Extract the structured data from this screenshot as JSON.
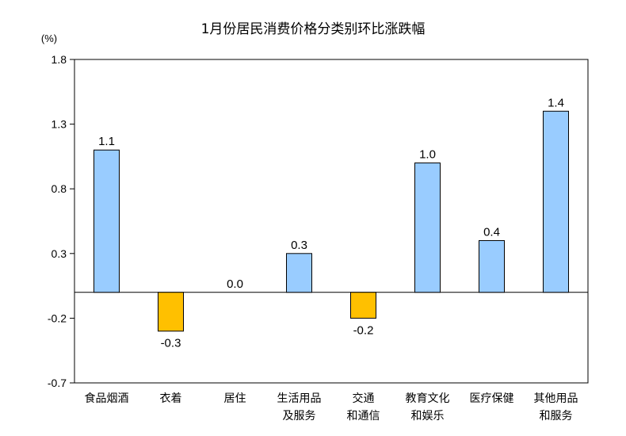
{
  "chart_data": {
    "type": "bar",
    "title": "1月份居民消费价格分类别环比涨跌幅",
    "unit": "(%)",
    "categories": [
      [
        "食品烟酒"
      ],
      [
        "衣着"
      ],
      [
        "居住"
      ],
      [
        "生活用品",
        "及服务"
      ],
      [
        "交通",
        "和通信"
      ],
      [
        "教育文化",
        "和娱乐"
      ],
      [
        "医疗保健"
      ],
      [
        "其他用品",
        "和服务"
      ]
    ],
    "values": [
      1.1,
      -0.3,
      0.0,
      0.3,
      -0.2,
      1.0,
      0.4,
      1.4
    ],
    "value_labels": [
      "1.1",
      "-0.3",
      "0.0",
      "0.3",
      "-0.2",
      "1.0",
      "0.4",
      "1.4"
    ],
    "yticks": [
      "1.8",
      "1.3",
      "0.8",
      "0.3",
      "-0.2",
      "-0.7"
    ],
    "ylim": [
      -0.7,
      1.8
    ],
    "grid": false,
    "colors": {
      "positive": "#99CCFF",
      "negative": "#FFC000",
      "outline": "#000000"
    }
  }
}
